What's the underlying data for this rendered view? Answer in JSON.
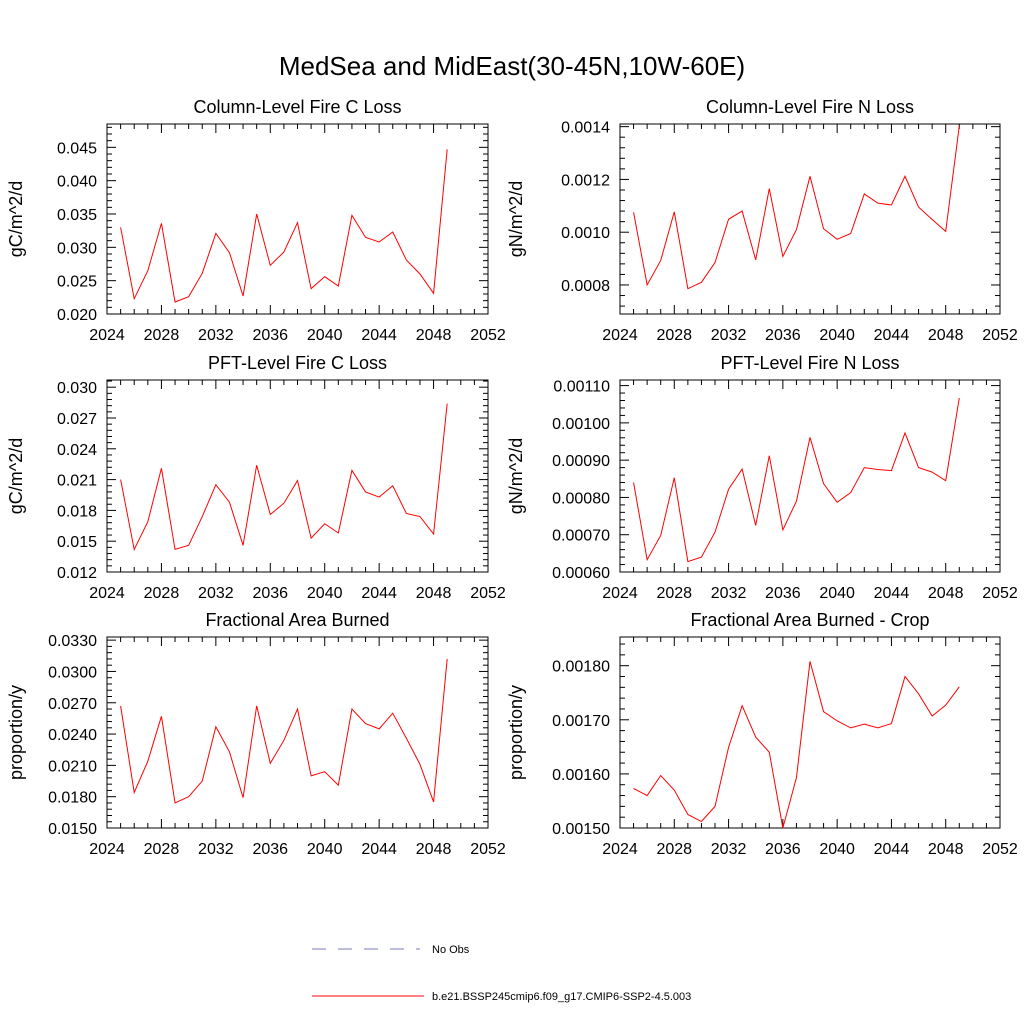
{
  "page_title": "MedSea and MidEast(30-45N,10W-60E)",
  "legend": {
    "obs_label": "No Obs",
    "obs_color": "#7a7ab8",
    "model_label": "b.e21.BSSP245cmip6.f09_g17.CMIP6-SSP2-4.5.003",
    "model_color": "#ff0000"
  },
  "chart_data": [
    {
      "type": "line",
      "title": "Column-Level Fire C Loss",
      "ylabel": "gC/m^2/d",
      "xlim": [
        2024,
        2052
      ],
      "xticks": [
        2024,
        2028,
        2032,
        2036,
        2040,
        2044,
        2048,
        2052
      ],
      "ylim": [
        0.02,
        0.0485
      ],
      "yticks": [
        0.02,
        0.025,
        0.03,
        0.035,
        0.04,
        0.045
      ],
      "ytick_labels": [
        "0.020",
        "0.025",
        "0.030",
        "0.035",
        "0.040",
        "0.045"
      ],
      "x": [
        2025,
        2026,
        2027,
        2028,
        2029,
        2030,
        2031,
        2032,
        2033,
        2034,
        2035,
        2036,
        2037,
        2038,
        2039,
        2040,
        2041,
        2042,
        2043,
        2044,
        2045,
        2046,
        2047,
        2048,
        2049
      ],
      "series": [
        {
          "values": [
            0.033,
            0.0223,
            0.0265,
            0.0336,
            0.0218,
            0.0226,
            0.0261,
            0.0321,
            0.0292,
            0.0227,
            0.035,
            0.0273,
            0.0293,
            0.0337,
            0.0238,
            0.0256,
            0.0242,
            0.0348,
            0.0315,
            0.0308,
            0.0323,
            0.0281,
            0.026,
            0.0231,
            0.0447
          ]
        }
      ]
    },
    {
      "type": "line",
      "title": "Column-Level Fire N Loss",
      "ylabel": "gN/m^2/d",
      "xlim": [
        2024,
        2052
      ],
      "xticks": [
        2024,
        2028,
        2032,
        2036,
        2040,
        2044,
        2048,
        2052
      ],
      "ylim": [
        0.00069,
        0.00141
      ],
      "yticks": [
        0.0008,
        0.001,
        0.0012,
        0.0014
      ],
      "ytick_labels": [
        "0.0008",
        "0.0010",
        "0.0012",
        "0.0014"
      ],
      "x": [
        2025,
        2026,
        2027,
        2028,
        2029,
        2030,
        2031,
        2032,
        2033,
        2034,
        2035,
        2036,
        2037,
        2038,
        2039,
        2040,
        2041,
        2042,
        2043,
        2044,
        2045,
        2046,
        2047,
        2048,
        2049
      ],
      "series": [
        {
          "values": [
            0.001075,
            0.0008,
            0.000893,
            0.001077,
            0.000786,
            0.00081,
            0.000885,
            0.001049,
            0.00108,
            0.000895,
            0.001165,
            0.000908,
            0.00101,
            0.001212,
            0.001013,
            0.000973,
            0.000995,
            0.001145,
            0.00111,
            0.001103,
            0.001212,
            0.001095,
            0.001048,
            0.001003,
            0.001403
          ]
        }
      ]
    },
    {
      "type": "line",
      "title": "PFT-Level Fire C Loss",
      "ylabel": "gC/m^2/d",
      "xlim": [
        2024,
        2052
      ],
      "xticks": [
        2024,
        2028,
        2032,
        2036,
        2040,
        2044,
        2048,
        2052
      ],
      "ylim": [
        0.012,
        0.0307
      ],
      "yticks": [
        0.012,
        0.015,
        0.018,
        0.021,
        0.024,
        0.027,
        0.03
      ],
      "ytick_labels": [
        "0.012",
        "0.015",
        "0.018",
        "0.021",
        "0.024",
        "0.027",
        "0.030"
      ],
      "x": [
        2025,
        2026,
        2027,
        2028,
        2029,
        2030,
        2031,
        2032,
        2033,
        2034,
        2035,
        2036,
        2037,
        2038,
        2039,
        2040,
        2041,
        2042,
        2043,
        2044,
        2045,
        2046,
        2047,
        2048,
        2049
      ],
      "series": [
        {
          "values": [
            0.021,
            0.0142,
            0.0169,
            0.0221,
            0.0142,
            0.0146,
            0.0174,
            0.0205,
            0.0188,
            0.0146,
            0.0224,
            0.0176,
            0.0187,
            0.0209,
            0.0153,
            0.0167,
            0.0158,
            0.0219,
            0.0198,
            0.0193,
            0.0204,
            0.0177,
            0.0174,
            0.0157,
            0.0284
          ]
        }
      ]
    },
    {
      "type": "line",
      "title": "PFT-Level Fire N Loss",
      "ylabel": "gN/m^2/d",
      "xlim": [
        2024,
        2052
      ],
      "xticks": [
        2024,
        2028,
        2032,
        2036,
        2040,
        2044,
        2048,
        2052
      ],
      "ylim": [
        0.0006,
        0.001115
      ],
      "yticks": [
        0.0006,
        0.0007,
        0.0008,
        0.0009,
        0.001,
        0.0011
      ],
      "ytick_labels": [
        "0.00060",
        "0.00070",
        "0.00080",
        "0.00090",
        "0.00100",
        "0.00110"
      ],
      "x": [
        2025,
        2026,
        2027,
        2028,
        2029,
        2030,
        2031,
        2032,
        2033,
        2034,
        2035,
        2036,
        2037,
        2038,
        2039,
        2040,
        2041,
        2042,
        2043,
        2044,
        2045,
        2046,
        2047,
        2048,
        2049
      ],
      "series": [
        {
          "values": [
            0.00084,
            0.000633,
            0.000698,
            0.000853,
            0.000628,
            0.00064,
            0.000707,
            0.000822,
            0.000876,
            0.000725,
            0.000912,
            0.000713,
            0.00079,
            0.000961,
            0.000837,
            0.000787,
            0.000813,
            0.00088,
            0.000875,
            0.000872,
            0.000973,
            0.00088,
            0.000868,
            0.000845,
            0.001067
          ]
        }
      ]
    },
    {
      "type": "line",
      "title": "Fractional Area Burned",
      "ylabel": "proportion/y",
      "xlim": [
        2024,
        2052
      ],
      "xticks": [
        2024,
        2028,
        2032,
        2036,
        2040,
        2044,
        2048,
        2052
      ],
      "ylim": [
        0.015,
        0.0333
      ],
      "yticks": [
        0.015,
        0.018,
        0.021,
        0.024,
        0.027,
        0.03,
        0.033
      ],
      "ytick_labels": [
        "0.0150",
        "0.0180",
        "0.0210",
        "0.0240",
        "0.0270",
        "0.0300",
        "0.0330"
      ],
      "x": [
        2025,
        2026,
        2027,
        2028,
        2029,
        2030,
        2031,
        2032,
        2033,
        2034,
        2035,
        2036,
        2037,
        2038,
        2039,
        2040,
        2041,
        2042,
        2043,
        2044,
        2045,
        2046,
        2047,
        2048,
        2049
      ],
      "series": [
        {
          "values": [
            0.0267,
            0.0184,
            0.0214,
            0.0257,
            0.0174,
            0.018,
            0.0195,
            0.0247,
            0.0223,
            0.0179,
            0.0267,
            0.0212,
            0.0234,
            0.0264,
            0.02,
            0.0204,
            0.0191,
            0.0264,
            0.025,
            0.0245,
            0.026,
            0.0236,
            0.0211,
            0.0175,
            0.0312
          ]
        }
      ]
    },
    {
      "type": "line",
      "title": "Fractional Area Burned - Crop",
      "ylabel": "proportion/y",
      "xlim": [
        2024,
        2052
      ],
      "xticks": [
        2024,
        2028,
        2032,
        2036,
        2040,
        2044,
        2048,
        2052
      ],
      "ylim": [
        0.0015,
        0.001853
      ],
      "yticks": [
        0.0015,
        0.0016,
        0.0017,
        0.0018
      ],
      "ytick_labels": [
        "0.00150",
        "0.00160",
        "0.00170",
        "0.00180"
      ],
      "x": [
        2025,
        2026,
        2027,
        2028,
        2029,
        2030,
        2031,
        2032,
        2033,
        2034,
        2035,
        2036,
        2037,
        2038,
        2039,
        2040,
        2041,
        2042,
        2043,
        2044,
        2045,
        2046,
        2047,
        2048,
        2049
      ],
      "series": [
        {
          "values": [
            0.001573,
            0.00156,
            0.001597,
            0.00157,
            0.001525,
            0.001512,
            0.00154,
            0.001649,
            0.001726,
            0.001668,
            0.00164,
            0.0015,
            0.001593,
            0.001808,
            0.001715,
            0.001698,
            0.001685,
            0.001692,
            0.001685,
            0.001693,
            0.00178,
            0.001748,
            0.001707,
            0.001727,
            0.001761
          ]
        }
      ]
    }
  ]
}
